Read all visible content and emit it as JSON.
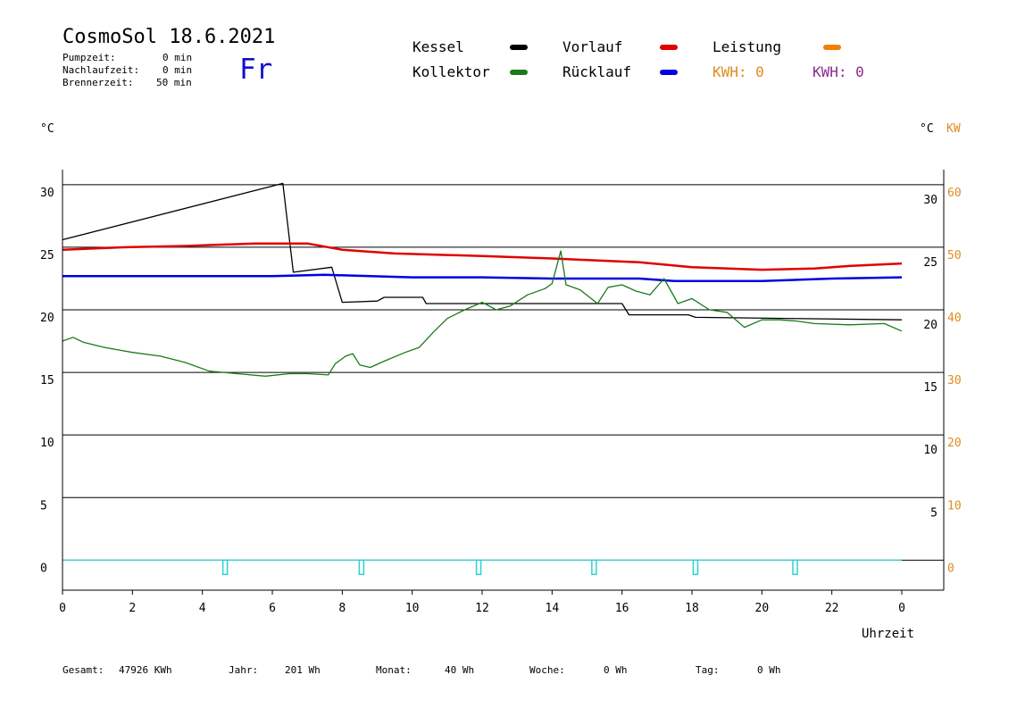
{
  "header": {
    "title": "CosmoSol 18.6.2021",
    "day": "Fr",
    "pump_label": "Pumpzeit:",
    "pump_value": "0 min",
    "afterrun_label": "Nachlaufzeit:",
    "afterrun_value": "0 min",
    "burner_label": "Brennerzeit:",
    "burner_value": "50 min"
  },
  "legend": {
    "kessel": "Kessel",
    "kollektor": "Kollektor",
    "vorlauf": "Vorlauf",
    "ruecklauf": "Rücklauf",
    "leistung": "Leistung",
    "kwh_orange": "KWH: 0",
    "kwh_purple": "KWH: 0"
  },
  "colors": {
    "kessel": "#000000",
    "kollektor": "#1a7a1a",
    "vorlauf": "#e00000",
    "ruecklauf": "#0000e0",
    "leistung": "#f08000",
    "pump": "#30d0d0",
    "kw_axis": "#e08a1e",
    "kwh_purple": "#8b2a8e"
  },
  "footer": {
    "gesamt_label": "Gesamt:",
    "gesamt_value": "47926 KWh",
    "jahr_label": "Jahr:",
    "jahr_value": "201 Wh",
    "monat_label": "Monat:",
    "monat_value": "40 Wh",
    "woche_label": "Woche:",
    "woche_value": "0 Wh",
    "tag_label": "Tag:",
    "tag_value": "0 Wh"
  },
  "chart_data": {
    "type": "line",
    "xlabel": "Uhrzeit",
    "ylabel_left": "°C",
    "ylabel_right": "°C",
    "ylabel_right2": "KW",
    "xlim": [
      0,
      24
    ],
    "ylim": [
      -2.4,
      31.2
    ],
    "y2lim": [
      -4.8,
      62.4
    ],
    "x_ticks": [
      "0",
      "2",
      "4",
      "6",
      "8",
      "10",
      "12",
      "14",
      "16",
      "18",
      "20",
      "22",
      "0"
    ],
    "y_ticks_left": [
      30,
      25,
      20,
      15,
      10,
      5,
      0
    ],
    "y_ticks_right": [
      30,
      25,
      20,
      15,
      10,
      5
    ],
    "y2_ticks": [
      60,
      50,
      40,
      30,
      20,
      10,
      0
    ],
    "gridlines": [
      30,
      25,
      20,
      15,
      10,
      5,
      0
    ],
    "series": [
      {
        "name": "Kessel",
        "color": "#000000",
        "points": [
          [
            0,
            25.6
          ],
          [
            6.3,
            30.1
          ],
          [
            6.6,
            23.0
          ],
          [
            7.7,
            23.4
          ],
          [
            8.0,
            20.6
          ],
          [
            9.0,
            20.7
          ],
          [
            9.2,
            21.0
          ],
          [
            10.3,
            21.0
          ],
          [
            10.4,
            20.5
          ],
          [
            16.0,
            20.5
          ],
          [
            16.2,
            19.6
          ],
          [
            17.9,
            19.6
          ],
          [
            18.1,
            19.4
          ],
          [
            24.0,
            19.2
          ]
        ]
      },
      {
        "name": "Vorlauf",
        "color": "#e00000",
        "points": [
          [
            0,
            24.8
          ],
          [
            1.8,
            25.0
          ],
          [
            3.5,
            25.1
          ],
          [
            5.5,
            25.3
          ],
          [
            7.0,
            25.3
          ],
          [
            8.0,
            24.8
          ],
          [
            9.5,
            24.5
          ],
          [
            12.0,
            24.3
          ],
          [
            14.0,
            24.1
          ],
          [
            16.5,
            23.8
          ],
          [
            18.0,
            23.4
          ],
          [
            20.0,
            23.2
          ],
          [
            21.5,
            23.3
          ],
          [
            22.5,
            23.5
          ],
          [
            24.0,
            23.7
          ]
        ]
      },
      {
        "name": "Rücklauf",
        "color": "#0000e0",
        "points": [
          [
            0,
            22.7
          ],
          [
            6.0,
            22.7
          ],
          [
            7.5,
            22.8
          ],
          [
            10.0,
            22.6
          ],
          [
            12.0,
            22.6
          ],
          [
            14.0,
            22.5
          ],
          [
            16.5,
            22.5
          ],
          [
            17.5,
            22.3
          ],
          [
            20.0,
            22.3
          ],
          [
            22.0,
            22.5
          ],
          [
            24.0,
            22.6
          ]
        ]
      },
      {
        "name": "Kollektor",
        "color": "#1a7a1a",
        "points": [
          [
            0,
            17.5
          ],
          [
            0.3,
            17.8
          ],
          [
            0.6,
            17.4
          ],
          [
            1.2,
            17.0
          ],
          [
            2.0,
            16.6
          ],
          [
            2.8,
            16.3
          ],
          [
            3.5,
            15.8
          ],
          [
            4.2,
            15.1
          ],
          [
            5.0,
            14.9
          ],
          [
            5.8,
            14.7
          ],
          [
            6.5,
            14.9
          ],
          [
            7.0,
            14.9
          ],
          [
            7.6,
            14.8
          ],
          [
            7.8,
            15.7
          ],
          [
            8.1,
            16.3
          ],
          [
            8.3,
            16.5
          ],
          [
            8.5,
            15.6
          ],
          [
            8.8,
            15.4
          ],
          [
            9.2,
            15.9
          ],
          [
            9.8,
            16.6
          ],
          [
            10.2,
            17.0
          ],
          [
            10.6,
            18.2
          ],
          [
            11.0,
            19.3
          ],
          [
            11.5,
            20.0
          ],
          [
            12.0,
            20.6
          ],
          [
            12.4,
            20.0
          ],
          [
            12.8,
            20.3
          ],
          [
            13.3,
            21.2
          ],
          [
            13.8,
            21.7
          ],
          [
            14.0,
            22.1
          ],
          [
            14.25,
            24.7
          ],
          [
            14.4,
            22.0
          ],
          [
            14.8,
            21.6
          ],
          [
            15.3,
            20.5
          ],
          [
            15.6,
            21.8
          ],
          [
            16.0,
            22.0
          ],
          [
            16.4,
            21.5
          ],
          [
            16.8,
            21.2
          ],
          [
            17.2,
            22.5
          ],
          [
            17.6,
            20.5
          ],
          [
            18.0,
            20.9
          ],
          [
            18.5,
            20.0
          ],
          [
            19.0,
            19.8
          ],
          [
            19.5,
            18.6
          ],
          [
            20.0,
            19.2
          ],
          [
            20.5,
            19.2
          ],
          [
            21.0,
            19.1
          ],
          [
            21.5,
            18.9
          ],
          [
            22.5,
            18.8
          ],
          [
            23.5,
            18.9
          ],
          [
            24.0,
            18.3
          ]
        ]
      },
      {
        "name": "Pumpe",
        "color": "#30d0d0",
        "points": [
          [
            0,
            0
          ],
          [
            24.0,
            0
          ]
        ]
      }
    ],
    "pulses_x": [
      4.65,
      8.55,
      11.9,
      15.2,
      18.1,
      20.95
    ]
  }
}
